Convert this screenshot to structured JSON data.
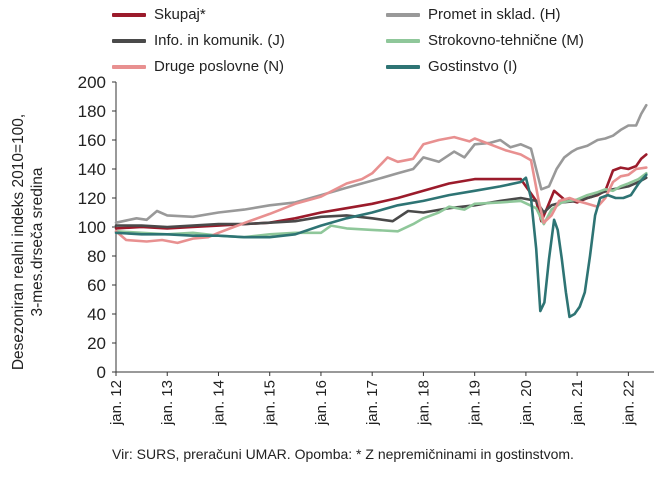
{
  "chart_data": {
    "type": "line",
    "ylabel_line1": "Desezoniran realni indeks 2010=100,",
    "ylabel_line2": "3-mes.drseča sredina",
    "ylim": [
      0,
      200
    ],
    "yticks": [
      0,
      20,
      40,
      60,
      80,
      100,
      120,
      140,
      160,
      180,
      200
    ],
    "xlim": [
      2012.0,
      2022.5
    ],
    "x_ticks": [
      {
        "x": 2012,
        "label": "jan. 12"
      },
      {
        "x": 2013,
        "label": "jan. 13"
      },
      {
        "x": 2014,
        "label": "jan. 14"
      },
      {
        "x": 2015,
        "label": "jan. 15"
      },
      {
        "x": 2016,
        "label": "jan. 16"
      },
      {
        "x": 2017,
        "label": "jan. 17"
      },
      {
        "x": 2018,
        "label": "jan. 18"
      },
      {
        "x": 2019,
        "label": "jan. 19"
      },
      {
        "x": 2020,
        "label": "jan. 20"
      },
      {
        "x": 2021,
        "label": "jan. 21"
      },
      {
        "x": 2022,
        "label": "jan. 22"
      }
    ],
    "grid": false,
    "legend_position": "top",
    "series": [
      {
        "name": "Skupaj*",
        "color": "#9b1b2b",
        "points": [
          [
            2012.0,
            99
          ],
          [
            2012.5,
            100
          ],
          [
            2013.0,
            99
          ],
          [
            2013.5,
            100
          ],
          [
            2014.0,
            101
          ],
          [
            2014.5,
            102
          ],
          [
            2015.0,
            103
          ],
          [
            2015.5,
            106
          ],
          [
            2016.0,
            110
          ],
          [
            2016.5,
            113
          ],
          [
            2017.0,
            116
          ],
          [
            2017.5,
            120
          ],
          [
            2018.0,
            125
          ],
          [
            2018.5,
            130
          ],
          [
            2019.0,
            133
          ],
          [
            2019.5,
            133
          ],
          [
            2019.9,
            133
          ],
          [
            2020.2,
            118
          ],
          [
            2020.3,
            104
          ],
          [
            2020.4,
            112
          ],
          [
            2020.55,
            125
          ],
          [
            2020.75,
            119
          ],
          [
            2020.9,
            118
          ],
          [
            2021.0,
            117
          ],
          [
            2021.2,
            120
          ],
          [
            2021.4,
            122
          ],
          [
            2021.55,
            125
          ],
          [
            2021.7,
            139
          ],
          [
            2021.85,
            141
          ],
          [
            2022.0,
            140
          ],
          [
            2022.15,
            142
          ],
          [
            2022.25,
            147
          ],
          [
            2022.35,
            150
          ]
        ]
      },
      {
        "name": "Promet in sklad. (H)",
        "color": "#999999",
        "points": [
          [
            2012.0,
            103
          ],
          [
            2012.4,
            106
          ],
          [
            2012.6,
            105
          ],
          [
            2012.8,
            111
          ],
          [
            2013.0,
            108
          ],
          [
            2013.5,
            107
          ],
          [
            2014.0,
            110
          ],
          [
            2014.5,
            112
          ],
          [
            2015.0,
            115
          ],
          [
            2015.5,
            117
          ],
          [
            2016.0,
            122
          ],
          [
            2016.5,
            127
          ],
          [
            2017.0,
            132
          ],
          [
            2017.5,
            137
          ],
          [
            2017.8,
            140
          ],
          [
            2018.0,
            148
          ],
          [
            2018.3,
            145
          ],
          [
            2018.6,
            152
          ],
          [
            2018.8,
            148
          ],
          [
            2019.0,
            157
          ],
          [
            2019.3,
            158
          ],
          [
            2019.5,
            160
          ],
          [
            2019.7,
            155
          ],
          [
            2019.9,
            157
          ],
          [
            2020.1,
            154
          ],
          [
            2020.3,
            126
          ],
          [
            2020.45,
            128
          ],
          [
            2020.6,
            140
          ],
          [
            2020.75,
            148
          ],
          [
            2020.9,
            152
          ],
          [
            2021.0,
            154
          ],
          [
            2021.2,
            156
          ],
          [
            2021.4,
            160
          ],
          [
            2021.55,
            161
          ],
          [
            2021.7,
            163
          ],
          [
            2021.85,
            167
          ],
          [
            2022.0,
            170
          ],
          [
            2022.15,
            170
          ],
          [
            2022.25,
            178
          ],
          [
            2022.35,
            184
          ]
        ]
      },
      {
        "name": "Info. in komunik. (J)",
        "color": "#4a4a4a",
        "points": [
          [
            2012.0,
            101
          ],
          [
            2012.5,
            101
          ],
          [
            2013.0,
            100
          ],
          [
            2013.5,
            101
          ],
          [
            2014.0,
            102
          ],
          [
            2014.5,
            102
          ],
          [
            2015.0,
            103
          ],
          [
            2015.5,
            104
          ],
          [
            2016.0,
            107
          ],
          [
            2016.5,
            108
          ],
          [
            2017.0,
            106
          ],
          [
            2017.4,
            104
          ],
          [
            2017.7,
            111
          ],
          [
            2018.0,
            110
          ],
          [
            2018.5,
            113
          ],
          [
            2019.0,
            115
          ],
          [
            2019.5,
            118
          ],
          [
            2019.9,
            120
          ],
          [
            2020.2,
            118
          ],
          [
            2020.35,
            110
          ],
          [
            2020.5,
            115
          ],
          [
            2020.7,
            117
          ],
          [
            2021.0,
            118
          ],
          [
            2021.3,
            121
          ],
          [
            2021.5,
            124
          ],
          [
            2021.7,
            126
          ],
          [
            2022.0,
            128
          ],
          [
            2022.2,
            131
          ],
          [
            2022.35,
            134
          ]
        ]
      },
      {
        "name": "Strokovno-tehnične (M)",
        "color": "#8fc79a",
        "points": [
          [
            2012.0,
            97
          ],
          [
            2012.5,
            96
          ],
          [
            2013.0,
            95
          ],
          [
            2013.5,
            96
          ],
          [
            2014.0,
            94
          ],
          [
            2014.5,
            93
          ],
          [
            2015.0,
            95
          ],
          [
            2015.5,
            96
          ],
          [
            2016.0,
            96
          ],
          [
            2016.2,
            101
          ],
          [
            2016.5,
            99
          ],
          [
            2017.0,
            98
          ],
          [
            2017.5,
            97
          ],
          [
            2017.8,
            102
          ],
          [
            2018.0,
            106
          ],
          [
            2018.3,
            110
          ],
          [
            2018.5,
            114
          ],
          [
            2018.8,
            112
          ],
          [
            2019.0,
            116
          ],
          [
            2019.5,
            117
          ],
          [
            2019.9,
            118
          ],
          [
            2020.2,
            113
          ],
          [
            2020.35,
            102
          ],
          [
            2020.5,
            112
          ],
          [
            2020.7,
            117
          ],
          [
            2021.0,
            119
          ],
          [
            2021.2,
            122
          ],
          [
            2021.4,
            124
          ],
          [
            2021.55,
            126
          ],
          [
            2021.7,
            125
          ],
          [
            2021.85,
            128
          ],
          [
            2022.0,
            130
          ],
          [
            2022.2,
            133
          ],
          [
            2022.35,
            137
          ]
        ]
      },
      {
        "name": "Druge poslovne (N)",
        "color": "#e89090",
        "points": [
          [
            2012.0,
            97
          ],
          [
            2012.2,
            91
          ],
          [
            2012.6,
            90
          ],
          [
            2012.9,
            91
          ],
          [
            2013.2,
            89
          ],
          [
            2013.5,
            92
          ],
          [
            2013.8,
            93
          ],
          [
            2014.0,
            96
          ],
          [
            2014.3,
            100
          ],
          [
            2014.6,
            104
          ],
          [
            2015.0,
            109
          ],
          [
            2015.5,
            116
          ],
          [
            2016.0,
            121
          ],
          [
            2016.5,
            130
          ],
          [
            2016.8,
            133
          ],
          [
            2017.0,
            137
          ],
          [
            2017.3,
            148
          ],
          [
            2017.5,
            145
          ],
          [
            2017.8,
            147
          ],
          [
            2018.0,
            157
          ],
          [
            2018.3,
            160
          ],
          [
            2018.6,
            162
          ],
          [
            2018.9,
            159
          ],
          [
            2019.0,
            161
          ],
          [
            2019.3,
            157
          ],
          [
            2019.6,
            153
          ],
          [
            2019.9,
            150
          ],
          [
            2020.1,
            146
          ],
          [
            2020.25,
            118
          ],
          [
            2020.35,
            103
          ],
          [
            2020.5,
            108
          ],
          [
            2020.65,
            118
          ],
          [
            2020.85,
            120
          ],
          [
            2021.0,
            118
          ],
          [
            2021.2,
            116
          ],
          [
            2021.4,
            114
          ],
          [
            2021.55,
            120
          ],
          [
            2021.7,
            131
          ],
          [
            2021.85,
            135
          ],
          [
            2022.0,
            136
          ],
          [
            2022.15,
            140
          ],
          [
            2022.35,
            141
          ]
        ]
      },
      {
        "name": "Gostinstvo (I)",
        "color": "#2e7474",
        "points": [
          [
            2012.0,
            96
          ],
          [
            2012.5,
            95
          ],
          [
            2013.0,
            95
          ],
          [
            2013.5,
            94
          ],
          [
            2014.0,
            94
          ],
          [
            2014.5,
            93
          ],
          [
            2015.0,
            93
          ],
          [
            2015.5,
            95
          ],
          [
            2016.0,
            101
          ],
          [
            2016.5,
            106
          ],
          [
            2017.0,
            110
          ],
          [
            2017.5,
            115
          ],
          [
            2018.0,
            118
          ],
          [
            2018.5,
            122
          ],
          [
            2019.0,
            125
          ],
          [
            2019.5,
            128
          ],
          [
            2019.9,
            131
          ],
          [
            2020.0,
            134
          ],
          [
            2020.1,
            120
          ],
          [
            2020.2,
            85
          ],
          [
            2020.28,
            42
          ],
          [
            2020.36,
            48
          ],
          [
            2020.45,
            78
          ],
          [
            2020.55,
            105
          ],
          [
            2020.62,
            98
          ],
          [
            2020.7,
            78
          ],
          [
            2020.78,
            55
          ],
          [
            2020.85,
            38
          ],
          [
            2020.95,
            40
          ],
          [
            2021.05,
            45
          ],
          [
            2021.15,
            55
          ],
          [
            2021.25,
            80
          ],
          [
            2021.35,
            108
          ],
          [
            2021.45,
            120
          ],
          [
            2021.6,
            122
          ],
          [
            2021.75,
            120
          ],
          [
            2021.9,
            120
          ],
          [
            2022.05,
            122
          ],
          [
            2022.2,
            130
          ],
          [
            2022.35,
            136
          ]
        ]
      }
    ]
  },
  "source_text": "Vir: SURS, preračuni UMAR. Opomba: * Z nepremičninami in gostinstvom."
}
